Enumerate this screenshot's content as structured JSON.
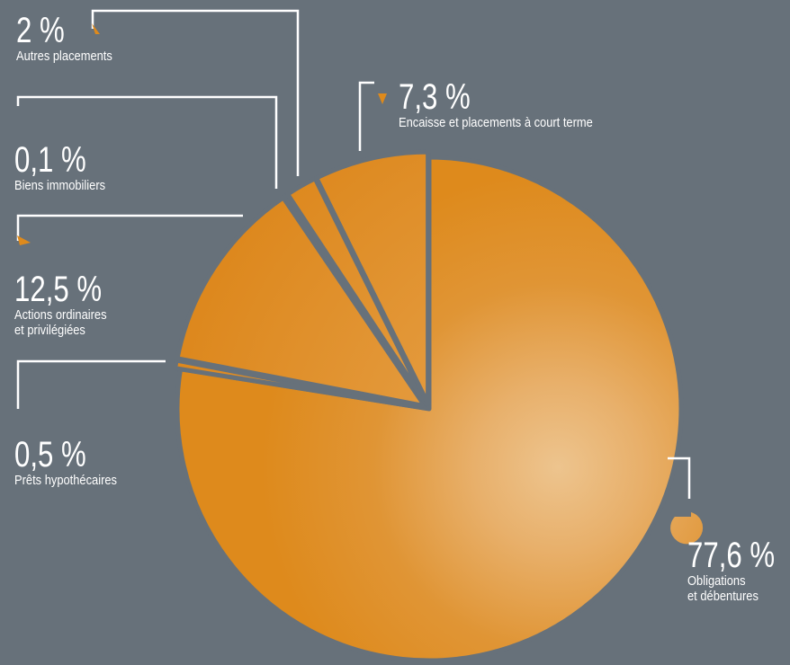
{
  "chart_data": {
    "type": "pie",
    "title": "",
    "slices": [
      {
        "value_text": "77,6 %",
        "value": 77.6,
        "label": "Obligations\net débentures"
      },
      {
        "value_text": "0,5 %",
        "value": 0.5,
        "label": "Prêts hypothécaires"
      },
      {
        "value_text": "12,5 %",
        "value": 12.5,
        "label": "Actions ordinaires\net privilégiées"
      },
      {
        "value_text": "0,1 %",
        "value": 0.1,
        "label": "Biens immobiliers"
      },
      {
        "value_text": "2 %",
        "value": 2,
        "label": "Autres placements"
      },
      {
        "value_text": "7,3 %",
        "value": 7.3,
        "label": "Encaisse et placements à court terme"
      }
    ],
    "legend": "none",
    "colors": {
      "background": "#67717a",
      "slice": "#de8a1c",
      "highlight": "#edc48e",
      "leader": "#ffffff"
    }
  }
}
